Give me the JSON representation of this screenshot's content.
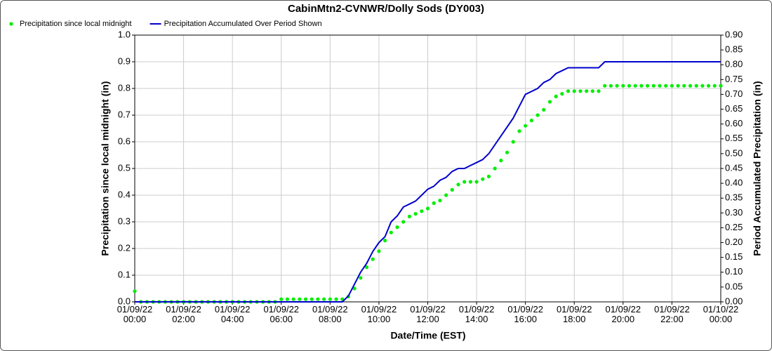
{
  "chart_data": {
    "type": "line",
    "title": "CabinMtn2-CVNWR/Dolly Sods (DY003)",
    "x_label": "Date/Time (EST)",
    "y_label": "Precipitation since local midnight (in)",
    "y2_label": "Period Accumulated Precipitation (in)",
    "grid": true,
    "legend": "top-left",
    "x": [
      "2022-01-09T00:00",
      "2022-01-09T00:15",
      "2022-01-09T00:30",
      "2022-01-09T00:45",
      "2022-01-09T01:00",
      "2022-01-09T01:15",
      "2022-01-09T01:30",
      "2022-01-09T01:45",
      "2022-01-09T02:00",
      "2022-01-09T02:15",
      "2022-01-09T02:30",
      "2022-01-09T02:45",
      "2022-01-09T03:00",
      "2022-01-09T03:15",
      "2022-01-09T03:30",
      "2022-01-09T03:45",
      "2022-01-09T04:00",
      "2022-01-09T04:15",
      "2022-01-09T04:30",
      "2022-01-09T04:45",
      "2022-01-09T05:00",
      "2022-01-09T05:15",
      "2022-01-09T05:30",
      "2022-01-09T05:45",
      "2022-01-09T06:00",
      "2022-01-09T06:15",
      "2022-01-09T06:30",
      "2022-01-09T06:45",
      "2022-01-09T07:00",
      "2022-01-09T07:15",
      "2022-01-09T07:30",
      "2022-01-09T07:45",
      "2022-01-09T08:00",
      "2022-01-09T08:15",
      "2022-01-09T08:30",
      "2022-01-09T08:45",
      "2022-01-09T09:00",
      "2022-01-09T09:15",
      "2022-01-09T09:30",
      "2022-01-09T09:45",
      "2022-01-09T10:00",
      "2022-01-09T10:15",
      "2022-01-09T10:30",
      "2022-01-09T10:45",
      "2022-01-09T11:00",
      "2022-01-09T11:15",
      "2022-01-09T11:30",
      "2022-01-09T11:45",
      "2022-01-09T12:00",
      "2022-01-09T12:15",
      "2022-01-09T12:30",
      "2022-01-09T12:45",
      "2022-01-09T13:00",
      "2022-01-09T13:15",
      "2022-01-09T13:30",
      "2022-01-09T13:45",
      "2022-01-09T14:00",
      "2022-01-09T14:15",
      "2022-01-09T14:30",
      "2022-01-09T14:45",
      "2022-01-09T15:00",
      "2022-01-09T15:15",
      "2022-01-09T15:30",
      "2022-01-09T15:45",
      "2022-01-09T16:00",
      "2022-01-09T16:15",
      "2022-01-09T16:30",
      "2022-01-09T16:45",
      "2022-01-09T17:00",
      "2022-01-09T17:15",
      "2022-01-09T17:30",
      "2022-01-09T17:45",
      "2022-01-09T18:00",
      "2022-01-09T18:15",
      "2022-01-09T18:30",
      "2022-01-09T18:45",
      "2022-01-09T19:00",
      "2022-01-09T19:15",
      "2022-01-09T19:30",
      "2022-01-09T19:45",
      "2022-01-09T20:00",
      "2022-01-09T20:15",
      "2022-01-09T20:30",
      "2022-01-09T20:45",
      "2022-01-09T21:00",
      "2022-01-09T21:15",
      "2022-01-09T21:30",
      "2022-01-09T21:45",
      "2022-01-09T22:00",
      "2022-01-09T22:15",
      "2022-01-09T22:30",
      "2022-01-09T22:45",
      "2022-01-09T23:00",
      "2022-01-09T23:15",
      "2022-01-09T23:30",
      "2022-01-09T23:45",
      "2022-01-10T00:00"
    ],
    "xlim": [
      "2022-01-09T00:00",
      "2022-01-10T00:00"
    ],
    "xticks": [
      {
        "value": "2022-01-09T00:00",
        "label": "01/09/22\n00:00"
      },
      {
        "value": "2022-01-09T02:00",
        "label": "01/09/22\n02:00"
      },
      {
        "value": "2022-01-09T04:00",
        "label": "01/09/22\n04:00"
      },
      {
        "value": "2022-01-09T06:00",
        "label": "01/09/22\n06:00"
      },
      {
        "value": "2022-01-09T08:00",
        "label": "01/09/22\n08:00"
      },
      {
        "value": "2022-01-09T10:00",
        "label": "01/09/22\n10:00"
      },
      {
        "value": "2022-01-09T12:00",
        "label": "01/09/22\n12:00"
      },
      {
        "value": "2022-01-09T14:00",
        "label": "01/09/22\n14:00"
      },
      {
        "value": "2022-01-09T16:00",
        "label": "01/09/22\n16:00"
      },
      {
        "value": "2022-01-09T18:00",
        "label": "01/09/22\n18:00"
      },
      {
        "value": "2022-01-09T20:00",
        "label": "01/09/22\n20:00"
      },
      {
        "value": "2022-01-09T22:00",
        "label": "01/09/22\n22:00"
      },
      {
        "value": "2022-01-10T00:00",
        "label": "01/10/22\n00:00"
      }
    ],
    "ylim": [
      0,
      1
    ],
    "yticks": [
      {
        "value": 0,
        "label": "0.0"
      },
      0.1,
      0.2,
      0.3,
      0.4,
      0.5,
      0.6,
      0.7,
      0.8,
      0.9,
      {
        "value": 1,
        "label": "1.0"
      }
    ],
    "y2lim": [
      0,
      0.9
    ],
    "y2ticks": [
      {
        "value": 0,
        "label": "0.00"
      },
      0.05,
      {
        "value": 0.1,
        "label": "0.10"
      },
      0.15,
      {
        "value": 0.2,
        "label": "0.20"
      },
      0.25,
      {
        "value": 0.3,
        "label": "0.30"
      },
      0.35,
      {
        "value": 0.4,
        "label": "0.40"
      },
      0.45,
      {
        "value": 0.5,
        "label": "0.50"
      },
      0.55,
      {
        "value": 0.6,
        "label": "0.60"
      },
      0.65,
      {
        "value": 0.7,
        "label": "0.70"
      },
      0.75,
      {
        "value": 0.8,
        "label": "0.80"
      },
      0.85,
      {
        "value": 0.9,
        "label": "0.90"
      }
    ],
    "series": [
      {
        "name": "Precipitation since local midnight",
        "color": "#00ee00",
        "style": "dots",
        "axis": "y",
        "values": [
          0.04,
          0,
          0,
          0,
          0,
          0,
          0,
          0,
          0,
          0,
          0,
          0,
          0,
          0,
          0,
          0,
          0,
          0,
          0,
          0,
          0,
          0,
          0,
          0,
          0.01,
          0.01,
          0.01,
          0.01,
          0.01,
          0.01,
          0.01,
          0.01,
          0.01,
          0.01,
          0.01,
          0.02,
          0.05,
          0.09,
          0.13,
          0.16,
          0.19,
          0.23,
          0.26,
          0.28,
          0.3,
          0.32,
          0.33,
          0.34,
          0.35,
          0.37,
          0.38,
          0.4,
          0.42,
          0.44,
          0.45,
          0.45,
          0.45,
          0.46,
          0.47,
          0.5,
          0.53,
          0.56,
          0.6,
          0.64,
          0.66,
          0.68,
          0.7,
          0.72,
          0.75,
          0.77,
          0.78,
          0.79,
          0.79,
          0.79,
          0.79,
          0.79,
          0.79,
          0.81,
          0.81,
          0.81,
          0.81,
          0.81,
          0.81,
          0.81,
          0.81,
          0.81,
          0.81,
          0.81,
          0.81,
          0.81,
          0.81,
          0.81,
          0.81,
          0.81,
          0.81,
          0.81,
          0.81
        ]
      },
      {
        "name": "Precipitation Accumulated Over Period Shown",
        "color": "#0000cc",
        "style": "line",
        "axis": "y2",
        "values": [
          0,
          0,
          0,
          0,
          0,
          0,
          0,
          0,
          0,
          0,
          0,
          0,
          0,
          0,
          0,
          0,
          0,
          0,
          0,
          0,
          0,
          0,
          0,
          0,
          0,
          0,
          0,
          0,
          0,
          0,
          0,
          0,
          0,
          0,
          0,
          0.02,
          0.06,
          0.1,
          0.13,
          0.17,
          0.2,
          0.22,
          0.27,
          0.29,
          0.32,
          0.33,
          0.34,
          0.36,
          0.38,
          0.39,
          0.41,
          0.42,
          0.44,
          0.45,
          0.45,
          0.46,
          0.47,
          0.48,
          0.5,
          0.53,
          0.56,
          0.59,
          0.62,
          0.66,
          0.7,
          0.71,
          0.72,
          0.74,
          0.75,
          0.77,
          0.78,
          0.79,
          0.79,
          0.79,
          0.79,
          0.79,
          0.79,
          0.81,
          0.81,
          0.81,
          0.81,
          0.81,
          0.81,
          0.81,
          0.81,
          0.81,
          0.81,
          0.81,
          0.81,
          0.81,
          0.81,
          0.81,
          0.81,
          0.81,
          0.81,
          0.81,
          0.81
        ]
      }
    ]
  }
}
